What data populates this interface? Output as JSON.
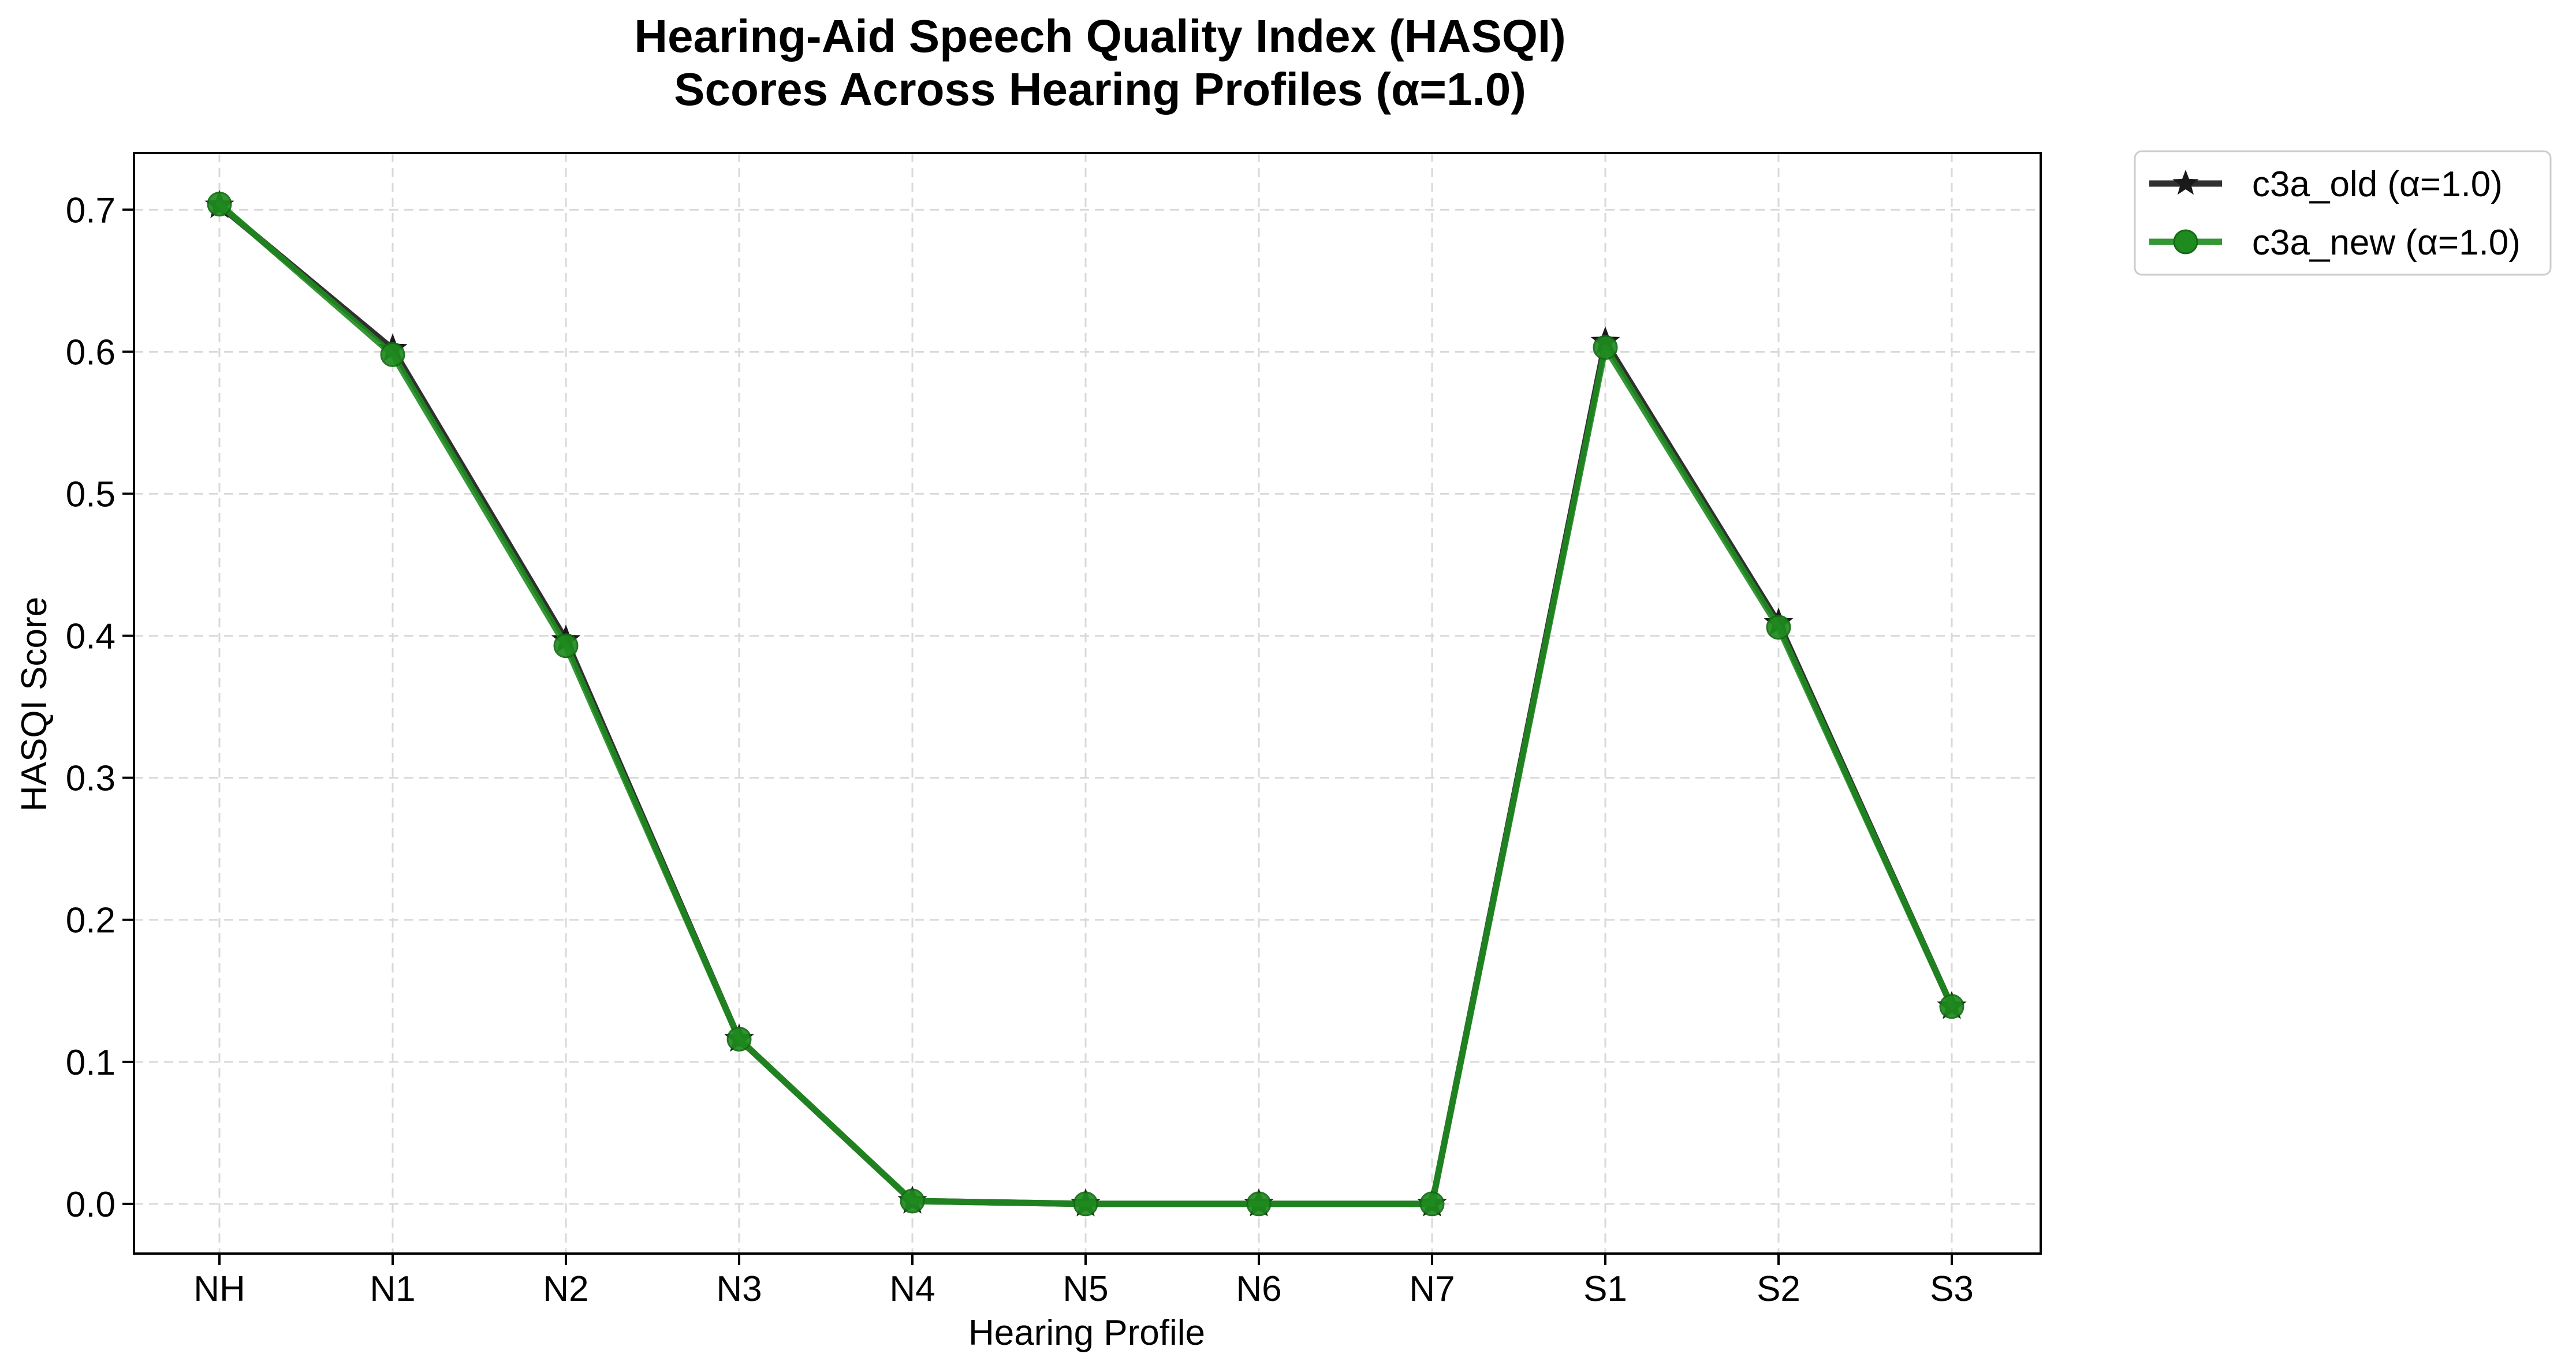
{
  "chart_data": {
    "type": "line",
    "title_line1": "Hearing-Aid Speech Quality Index (HASQI)",
    "title_line2": "Scores Across Hearing Profiles (α=1.0)",
    "xlabel": "Hearing Profile",
    "ylabel": "HASQI Score",
    "categories": [
      "NH",
      "N1",
      "N2",
      "N3",
      "N4",
      "N5",
      "N6",
      "N7",
      "S1",
      "S2",
      "S3"
    ],
    "ylim": [
      -0.035,
      0.74
    ],
    "yticks": [
      "0.0",
      "0.1",
      "0.2",
      "0.3",
      "0.4",
      "0.5",
      "0.6",
      "0.7"
    ],
    "grid": true,
    "legend_position": "outside-top-right",
    "series": [
      {
        "name": "c3a_old (α=1.0)",
        "color": "#1a1a1a",
        "marker": "star",
        "values": [
          0.703,
          0.602,
          0.397,
          0.116,
          0.002,
          0.0,
          0.0,
          0.0,
          0.607,
          0.409,
          0.139
        ]
      },
      {
        "name": "c3a_new (α=1.0)",
        "color": "#1f8b1f",
        "marker": "circle",
        "values": [
          0.704,
          0.598,
          0.393,
          0.116,
          0.002,
          0.0,
          0.0,
          0.0,
          0.603,
          0.406,
          0.139
        ]
      }
    ]
  }
}
